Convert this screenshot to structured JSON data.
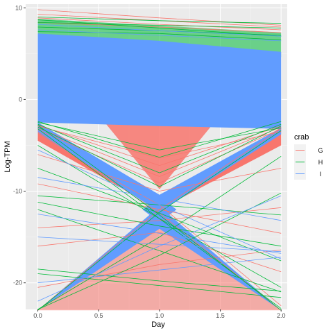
{
  "chart_data": {
    "type": "line",
    "title": "",
    "xlabel": "Day",
    "ylabel": "Log-TPM",
    "xlim": [
      -0.1,
      2.05
    ],
    "ylim": [
      -22.9,
      10.4
    ],
    "x_ticks": [
      0.0,
      0.5,
      1.0,
      1.5,
      2.0
    ],
    "x_tick_labels": [
      "0.0",
      "0.5",
      "1.0",
      "1.5",
      "2.0"
    ],
    "y_ticks": [
      10,
      0,
      -10,
      -20
    ],
    "y_tick_labels": [
      "10",
      "0",
      "-10",
      "-20"
    ],
    "x": [
      0,
      1,
      2
    ],
    "background": "#ebebeb",
    "grid": true,
    "legend": {
      "title": "crab",
      "position": "right",
      "entries": [
        "G",
        "H",
        "I"
      ]
    },
    "series": [
      {
        "name": "G",
        "color": "#f8766d",
        "lines": [
          [
            9.8,
            8.9,
            8.1
          ],
          [
            9.3,
            8.6,
            7.9
          ],
          [
            8.9,
            8.2,
            7.6
          ],
          [
            8.4,
            7.9,
            7.3
          ],
          [
            -2.8,
            -7.2,
            -2.9
          ],
          [
            -3.1,
            -8.4,
            -3.0
          ],
          [
            -3.3,
            -9.1,
            -3.2
          ],
          [
            -2.9,
            -6.4,
            -3.5
          ],
          [
            -23.0,
            -12.0,
            -3.2
          ],
          [
            -3.5,
            -12.4,
            -23.0
          ],
          [
            -4.2,
            -11.5,
            -22.5
          ],
          [
            -6.0,
            -10.0,
            -7.5
          ],
          [
            -14.0,
            -13.2,
            -11.8
          ],
          [
            -20.5,
            -18.0,
            -16.4
          ],
          [
            -9.2,
            -12.0,
            -14.6
          ],
          [
            -16.0,
            -14.5,
            -18.8
          ]
        ]
      },
      {
        "name": "H",
        "color": "#00ba38",
        "lines": [
          [
            9.0,
            8.6,
            8.3
          ],
          [
            8.4,
            8.1,
            7.8
          ],
          [
            7.9,
            7.5,
            7.0
          ],
          [
            8.7,
            7.8,
            6.9
          ],
          [
            7.4,
            7.2,
            6.5
          ],
          [
            -2.4,
            -6.3,
            -2.4
          ],
          [
            -2.7,
            -8.0,
            -2.7
          ],
          [
            -3.0,
            -9.5,
            -2.9
          ],
          [
            -2.5,
            -5.5,
            -3.1
          ],
          [
            -23.0,
            -12.3,
            -3.4
          ],
          [
            -2.8,
            -12.6,
            -23.0
          ],
          [
            -3.2,
            -13.0,
            -22.8
          ],
          [
            -19.0,
            -20.3,
            -21.6
          ],
          [
            -18.5,
            -19.8,
            -20.9
          ],
          [
            -12.0,
            -16.5,
            -21.0
          ],
          [
            -7.5,
            -12.4,
            -17.6
          ],
          [
            -22.9,
            -17.0,
            -10.2
          ],
          [
            -22.9,
            -15.0,
            -6.2
          ],
          [
            -11.2,
            -13.8,
            -16.0
          ],
          [
            -5.0,
            -13.0,
            -20.5
          ],
          [
            -10.5,
            -11.5,
            -12.6
          ]
        ]
      },
      {
        "name": "I",
        "color": "#619cff",
        "lines": [
          [
            8.2,
            7.5,
            6.9
          ],
          [
            7.6,
            7.0,
            6.4
          ],
          [
            -8.5,
            -10.8,
            -13.2
          ],
          [
            -15.0,
            -15.8,
            -16.6
          ],
          [
            -20.0,
            -18.6,
            -17.2
          ],
          [
            -12.5,
            -14.6,
            -16.8
          ],
          [
            -5.5,
            -11.5,
            -17.4
          ],
          [
            -22.0,
            -16.0,
            -10.5
          ]
        ]
      }
    ]
  }
}
